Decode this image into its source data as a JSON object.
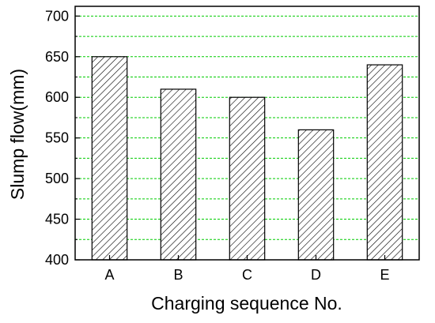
{
  "chart_data": {
    "type": "bar",
    "x_label": "Charging sequence No.",
    "y_label": "Slump flow(mm)",
    "categories": [
      "A",
      "B",
      "C",
      "D",
      "E"
    ],
    "values": [
      650,
      610,
      600,
      560,
      640
    ],
    "color": "#000000",
    "hatch": "diagonal",
    "ylim": [
      400,
      712
    ],
    "yticks": [
      400,
      450,
      500,
      550,
      600,
      650,
      700
    ],
    "minor_yticks": [
      425,
      475,
      525,
      575,
      625,
      675
    ],
    "grid": true,
    "grid_color": "#00cc00"
  }
}
